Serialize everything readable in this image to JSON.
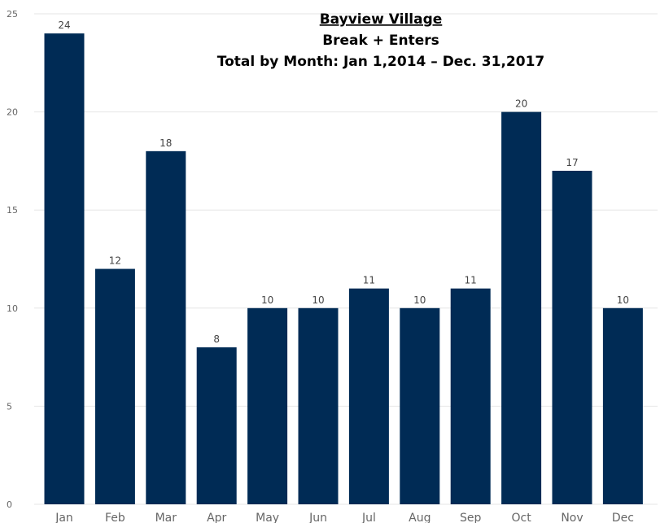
{
  "chart_data": {
    "type": "bar",
    "title_lines": [
      "Bayview Village",
      "Break + Enters",
      "Total by Month: Jan 1,2014 – Dec. 31,2017"
    ],
    "categories": [
      "Jan",
      "Feb",
      "Mar",
      "Apr",
      "May",
      "Jun",
      "Jul",
      "Aug",
      "Sep",
      "Oct",
      "Nov",
      "Dec"
    ],
    "values": [
      24,
      12,
      18,
      8,
      10,
      10,
      11,
      10,
      11,
      20,
      17,
      10
    ],
    "ylim": [
      0,
      25
    ],
    "yticks": [
      0,
      5,
      10,
      15,
      20,
      25
    ],
    "xlabel": "",
    "ylabel": "",
    "grid": true,
    "data_labels": true,
    "bar_color": "#002b55",
    "grid_color": "#e6e6e6",
    "label_color": "#666666"
  }
}
